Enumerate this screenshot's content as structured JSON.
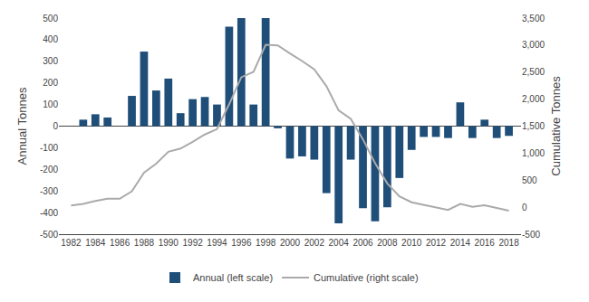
{
  "chart_data": {
    "type": "bar",
    "x": [
      1982,
      1983,
      1984,
      1985,
      1986,
      1987,
      1988,
      1989,
      1990,
      1991,
      1992,
      1993,
      1994,
      1995,
      1996,
      1997,
      1998,
      1999,
      2000,
      2001,
      2002,
      2003,
      2004,
      2005,
      2006,
      2007,
      2008,
      2009,
      2010,
      2011,
      2012,
      2013,
      2014,
      2015,
      2016,
      2017,
      2018
    ],
    "series": [
      {
        "name": "Annual (left scale)",
        "type": "bar",
        "color": "#1f4e79",
        "values": [
          0,
          30,
          55,
          40,
          0,
          140,
          345,
          165,
          220,
          60,
          125,
          135,
          100,
          460,
          500,
          100,
          500,
          -10,
          -150,
          -140,
          -155,
          -310,
          -450,
          -155,
          -380,
          -440,
          -375,
          -240,
          -110,
          -50,
          -50,
          -55,
          110,
          -55,
          30,
          -55,
          -45
        ]
      },
      {
        "name": "Cumulative (right scale)",
        "type": "line",
        "color": "#aaaaaa",
        "axis": "y2",
        "values": [
          30,
          60,
          115,
          155,
          155,
          295,
          640,
          805,
          1025,
          1085,
          1210,
          1345,
          1445,
          1905,
          2405,
          2505,
          3005,
          2995,
          2845,
          2705,
          2550,
          2240,
          1790,
          1635,
          1255,
          815,
          440,
          200,
          90,
          40,
          0,
          -50,
          60,
          5,
          35,
          -20,
          -65
        ]
      }
    ],
    "xlim": [
      1981.0,
      2019.0
    ],
    "xticks": [
      1982,
      1984,
      1986,
      1988,
      1990,
      1992,
      1994,
      1996,
      1998,
      2000,
      2002,
      2004,
      2006,
      2008,
      2010,
      2012,
      2014,
      2016,
      2018
    ],
    "ylim": [
      -500,
      500
    ],
    "yticks": [
      -500,
      -400,
      -300,
      -200,
      -100,
      0,
      100,
      200,
      300,
      400,
      500
    ],
    "y2lim": [
      -500,
      3500
    ],
    "y2ticks": [
      -500,
      0,
      500,
      {
        "value": 1000,
        "label": "1,000"
      },
      {
        "value": 1500,
        "label": "1,500"
      },
      {
        "value": 2000,
        "label": "2,000"
      },
      {
        "value": 2500,
        "label": "2,500"
      },
      {
        "value": 3000,
        "label": "3,000"
      },
      {
        "value": 3500,
        "label": "3,500"
      }
    ],
    "ylabel": "Annual Tonnes",
    "y2label": "Cumulative Tonnes",
    "grid": false,
    "legend": "bottom"
  }
}
